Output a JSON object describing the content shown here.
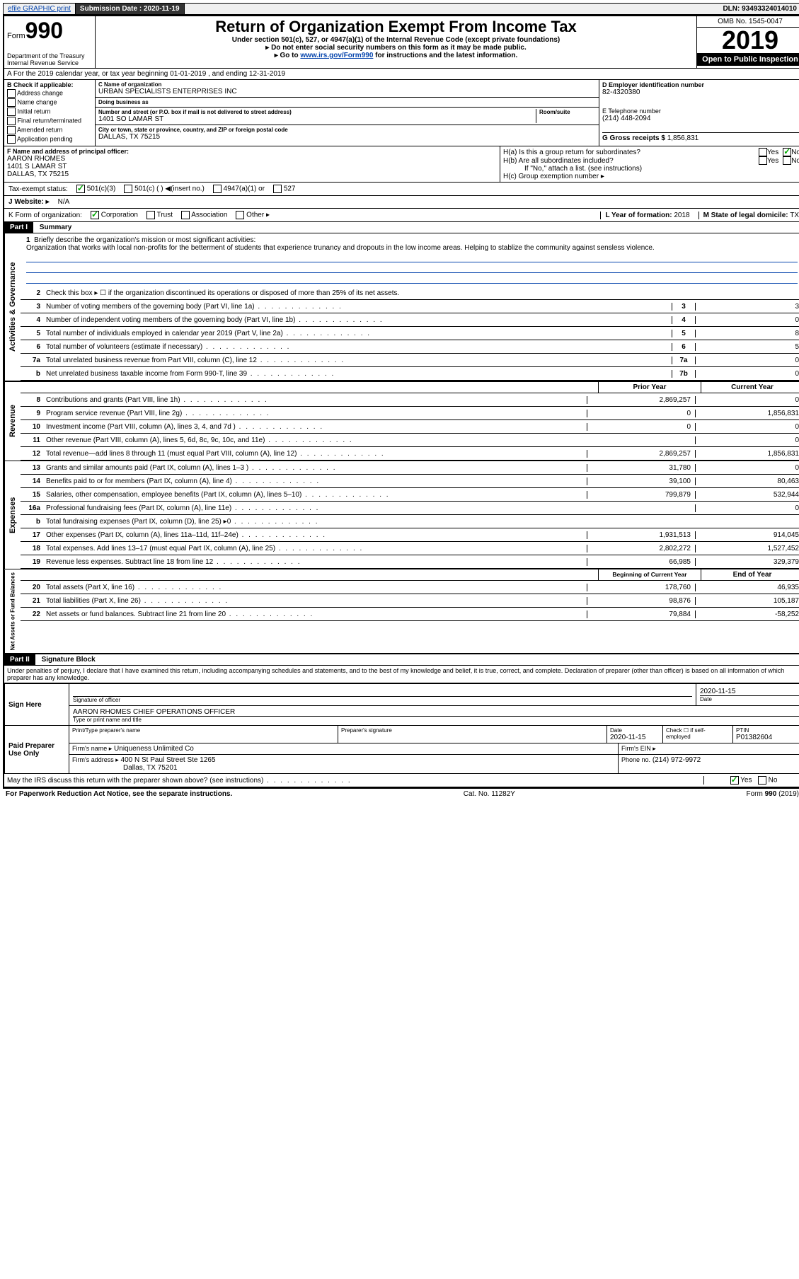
{
  "topbar": {
    "efile": "efile GRAPHIC print",
    "sub_label": "Submission Date :",
    "sub_date": "2020-11-19",
    "dln_label": "DLN:",
    "dln": "93493324014010"
  },
  "header": {
    "form_label": "Form",
    "form_num": "990",
    "dept": "Department of the Treasury\nInternal Revenue Service",
    "title": "Return of Organization Exempt From Income Tax",
    "sub1": "Under section 501(c), 527, or 4947(a)(1) of the Internal Revenue Code (except private foundations)",
    "sub2": "▸ Do not enter social security numbers on this form as it may be made public.",
    "sub3_pre": "▸ Go to ",
    "sub3_link": "www.irs.gov/Form990",
    "sub3_post": " for instructions and the latest information.",
    "omb": "OMB No. 1545-0047",
    "year": "2019",
    "open": "Open to Public Inspection"
  },
  "row_a": "A For the 2019 calendar year, or tax year beginning 01-01-2019     , and ending 12-31-2019",
  "col_b": {
    "label": "B Check if applicable:",
    "opts": [
      "Address change",
      "Name change",
      "Initial return",
      "Final return/terminated",
      "Amended return",
      "Application pending"
    ]
  },
  "col_c": {
    "name_lbl": "C Name of organization",
    "name": "URBAN SPECIALISTS ENTERPRISES INC",
    "dba_lbl": "Doing business as",
    "dba": "",
    "addr_lbl": "Number and street (or P.O. box if mail is not delivered to street address)",
    "room_lbl": "Room/suite",
    "addr": "1401 SO LAMAR ST",
    "city_lbl": "City or town, state or province, country, and ZIP or foreign postal code",
    "city": "DALLAS, TX  75215"
  },
  "col_d": {
    "ein_lbl": "D Employer identification number",
    "ein": "82-4320380",
    "tel_lbl": "E Telephone number",
    "tel": "(214) 448-2094",
    "gross_lbl": "G Gross receipts $",
    "gross": "1,856,831"
  },
  "col_f": {
    "lbl": "F  Name and address of principal officer:",
    "name": "AARON RHOMES",
    "addr1": "1401 S LAMAR ST",
    "addr2": "DALLAS, TX  75215"
  },
  "col_h": {
    "ha": "H(a)  Is this a group return for subordinates?",
    "hb": "H(b)  Are all subordinates included?",
    "hb_note": "If \"No,\" attach a list. (see instructions)",
    "hc": "H(c)  Group exemption number ▸",
    "yes": "Yes",
    "no": "No"
  },
  "tax_exempt": {
    "lbl": "Tax-exempt status:",
    "o1": "501(c)(3)",
    "o2": "501(c) (   ) ◀(insert no.)",
    "o3": "4947(a)(1) or",
    "o4": "527"
  },
  "website": {
    "lbl": "J   Website: ▸",
    "val": "N/A"
  },
  "row_k": {
    "lbl": "K Form of organization:",
    "o1": "Corporation",
    "o2": "Trust",
    "o3": "Association",
    "o4": "Other ▸",
    "l_lbl": "L Year of formation:",
    "l_val": "2018",
    "m_lbl": "M State of legal domicile:",
    "m_val": "TX"
  },
  "part1": {
    "hdr": "Part I",
    "title": "Summary"
  },
  "activities": {
    "label": "Activities & Governance",
    "l1": "Briefly describe the organization's mission or most significant activities:",
    "l1_desc": "Organization that works with local non-profits for the betterment of students that experience trunancy and dropouts in the low income areas. Helping to stablize the community against sensless violence.",
    "l2": "Check this box ▸ ☐  if the organization discontinued its operations or disposed of more than 25% of its net assets.",
    "lines": [
      {
        "n": "3",
        "t": "Number of voting members of the governing body (Part VI, line 1a)",
        "b": "3",
        "v": "3"
      },
      {
        "n": "4",
        "t": "Number of independent voting members of the governing body (Part VI, line 1b)",
        "b": "4",
        "v": "0"
      },
      {
        "n": "5",
        "t": "Total number of individuals employed in calendar year 2019 (Part V, line 2a)",
        "b": "5",
        "v": "8"
      },
      {
        "n": "6",
        "t": "Total number of volunteers (estimate if necessary)",
        "b": "6",
        "v": "5"
      },
      {
        "n": "7a",
        "t": "Total unrelated business revenue from Part VIII, column (C), line 12",
        "b": "7a",
        "v": "0"
      },
      {
        "n": "b",
        "t": "Net unrelated business taxable income from Form 990-T, line 39",
        "b": "7b",
        "v": "0"
      }
    ]
  },
  "colhdrs": {
    "prior": "Prior Year",
    "current": "Current Year"
  },
  "revenue": {
    "label": "Revenue",
    "lines": [
      {
        "n": "8",
        "t": "Contributions and grants (Part VIII, line 1h)",
        "p": "2,869,257",
        "c": "0"
      },
      {
        "n": "9",
        "t": "Program service revenue (Part VIII, line 2g)",
        "p": "0",
        "c": "1,856,831"
      },
      {
        "n": "10",
        "t": "Investment income (Part VIII, column (A), lines 3, 4, and 7d )",
        "p": "0",
        "c": "0"
      },
      {
        "n": "11",
        "t": "Other revenue (Part VIII, column (A), lines 5, 6d, 8c, 9c, 10c, and 11e)",
        "p": "",
        "c": "0"
      },
      {
        "n": "12",
        "t": "Total revenue—add lines 8 through 11 (must equal Part VIII, column (A), line 12)",
        "p": "2,869,257",
        "c": "1,856,831"
      }
    ]
  },
  "expenses": {
    "label": "Expenses",
    "lines": [
      {
        "n": "13",
        "t": "Grants and similar amounts paid (Part IX, column (A), lines 1–3 )",
        "p": "31,780",
        "c": "0"
      },
      {
        "n": "14",
        "t": "Benefits paid to or for members (Part IX, column (A), line 4)",
        "p": "39,100",
        "c": "80,463"
      },
      {
        "n": "15",
        "t": "Salaries, other compensation, employee benefits (Part IX, column (A), lines 5–10)",
        "p": "799,879",
        "c": "532,944"
      },
      {
        "n": "16a",
        "t": "Professional fundraising fees (Part IX, column (A), line 11e)",
        "p": "",
        "c": "0"
      },
      {
        "n": "b",
        "t": "Total fundraising expenses (Part IX, column (D), line 25) ▸0",
        "p": "SHADE",
        "c": "SHADE"
      },
      {
        "n": "17",
        "t": "Other expenses (Part IX, column (A), lines 11a–11d, 11f–24e)",
        "p": "1,931,513",
        "c": "914,045"
      },
      {
        "n": "18",
        "t": "Total expenses. Add lines 13–17 (must equal Part IX, column (A), line 25)",
        "p": "2,802,272",
        "c": "1,527,452"
      },
      {
        "n": "19",
        "t": "Revenue less expenses. Subtract line 18 from line 12",
        "p": "66,985",
        "c": "329,379"
      }
    ]
  },
  "colhdrs2": {
    "begin": "Beginning of Current Year",
    "end": "End of Year"
  },
  "netassets": {
    "label": "Net Assets or Fund Balances",
    "lines": [
      {
        "n": "20",
        "t": "Total assets (Part X, line 16)",
        "p": "178,760",
        "c": "46,935"
      },
      {
        "n": "21",
        "t": "Total liabilities (Part X, line 26)",
        "p": "98,876",
        "c": "105,187"
      },
      {
        "n": "22",
        "t": "Net assets or fund balances. Subtract line 21 from line 20",
        "p": "79,884",
        "c": "-58,252"
      }
    ]
  },
  "part2": {
    "hdr": "Part II",
    "title": "Signature Block",
    "decl": "Under penalties of perjury, I declare that I have examined this return, including accompanying schedules and statements, and to the best of my knowledge and belief, it is true, correct, and complete. Declaration of preparer (other than officer) is based on all information of which preparer has any knowledge."
  },
  "sign": {
    "left": "Sign Here",
    "sig_lbl": "Signature of officer",
    "date": "2020-11-15",
    "date_lbl": "Date",
    "name": "AARON RHOMES  CHIEF OPERATIONS OFFICER",
    "name_lbl": "Type or print name and title"
  },
  "prep": {
    "left": "Paid Preparer Use Only",
    "c1": "Print/Type preparer's name",
    "c2": "Preparer's signature",
    "c3_lbl": "Date",
    "c3": "2020-11-15",
    "c4": "Check ☐  if self-employed",
    "c5_lbl": "PTIN",
    "c5": "P01382604",
    "firm_lbl": "Firm's name    ▸",
    "firm": "Uniqueness Unlimited Co",
    "ein_lbl": "Firm's EIN ▸",
    "addr_lbl": "Firm's address ▸",
    "addr1": "400 N St Paul Street Ste 1265",
    "addr2": "Dallas, TX  75201",
    "phone_lbl": "Phone no.",
    "phone": "(214) 972-9972"
  },
  "irs_discuss": "May the IRS discuss this return with the preparer shown above? (see instructions)",
  "footer": {
    "left": "For Paperwork Reduction Act Notice, see the separate instructions.",
    "mid": "Cat. No. 11282Y",
    "right": "Form 990 (2019)"
  }
}
